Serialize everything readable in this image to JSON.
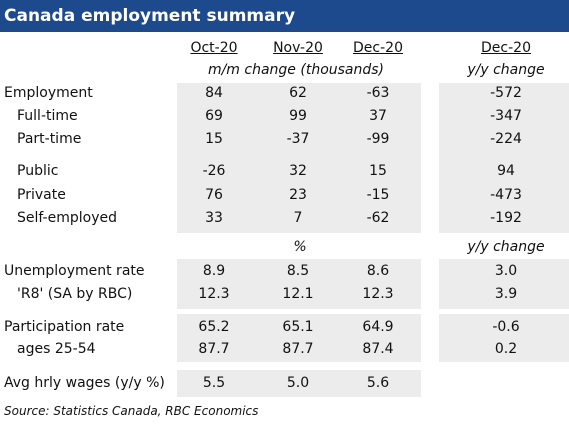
{
  "title": "Canada employment summary",
  "headers": {
    "col1": "Oct-20",
    "col2": "Nov-20",
    "col3": "Dec-20",
    "col4": "Dec-20",
    "sub_mm": "m/m change (thousands)",
    "sub_yy": "y/y change",
    "pct": "%",
    "sub_yy2": "y/y change"
  },
  "rows": [
    {
      "label": "Employment",
      "values": [
        "84",
        "62",
        "-63",
        "-572"
      ]
    },
    {
      "label": "Full-time",
      "values": [
        "69",
        "99",
        "37",
        "-347"
      ]
    },
    {
      "label": "Part-time",
      "values": [
        "15",
        "-37",
        "-99",
        "-224"
      ]
    },
    {
      "label": "Public",
      "values": [
        "-26",
        "32",
        "15",
        "94"
      ]
    },
    {
      "label": "Private",
      "values": [
        "76",
        "23",
        "-15",
        "-473"
      ]
    },
    {
      "label": "Self-employed",
      "values": [
        "33",
        "7",
        "-62",
        "-192"
      ]
    },
    {
      "label": "Unemployment rate",
      "values": [
        "8.9",
        "8.5",
        "8.6",
        "3.0"
      ]
    },
    {
      "label": "'R8' (SA by RBC)",
      "values": [
        "12.3",
        "12.1",
        "12.3",
        "3.9"
      ]
    },
    {
      "label": "Participation rate",
      "values": [
        "65.2",
        "65.1",
        "64.9",
        "-0.6"
      ]
    },
    {
      "label": "ages 25-54",
      "values": [
        "87.7",
        "87.7",
        "87.4",
        "0.2"
      ]
    },
    {
      "label": "Avg hrly wages (y/y %)",
      "values": [
        "5.5",
        "5.0",
        "5.6"
      ]
    }
  ],
  "source": "Source:  Statistics Canada, RBC Economics",
  "colors": {
    "title_bg": "#1d4a8c",
    "title_text": "#ffffff",
    "shade": "#ececec"
  }
}
